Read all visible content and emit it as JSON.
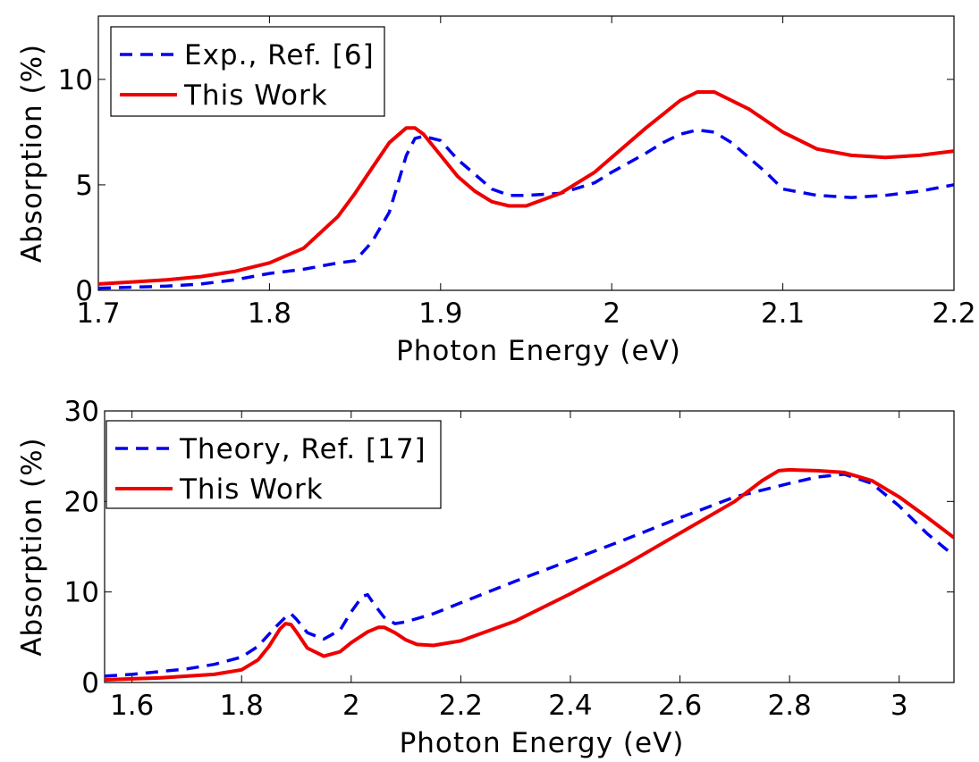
{
  "chart_data": [
    {
      "type": "line",
      "title": "",
      "xlabel": "Photon Energy (eV)",
      "ylabel": "Absorption (%)",
      "xlim": [
        1.7,
        2.2
      ],
      "ylim": [
        0,
        13
      ],
      "xticks": [
        "1.7",
        "1.8",
        "1.9",
        "2",
        "2.1",
        "2.2"
      ],
      "yticks": [
        "0",
        "5",
        "10"
      ],
      "grid": false,
      "legend_position": "top-left",
      "series": [
        {
          "name": "Exp., Ref. [6]",
          "style": "dashed",
          "color": "#0000ee",
          "x": [
            1.7,
            1.72,
            1.74,
            1.76,
            1.78,
            1.8,
            1.82,
            1.84,
            1.85,
            1.86,
            1.87,
            1.88,
            1.885,
            1.89,
            1.9,
            1.91,
            1.92,
            1.93,
            1.94,
            1.95,
            1.97,
            1.99,
            2.0,
            2.02,
            2.03,
            2.04,
            2.05,
            2.06,
            2.07,
            2.08,
            2.09,
            2.1,
            2.12,
            2.14,
            2.16,
            2.18,
            2.2
          ],
          "y": [
            0.1,
            0.15,
            0.2,
            0.3,
            0.5,
            0.8,
            1.0,
            1.3,
            1.4,
            2.3,
            3.7,
            6.4,
            7.2,
            7.3,
            7.1,
            6.2,
            5.5,
            4.8,
            4.5,
            4.5,
            4.6,
            5.1,
            5.6,
            6.5,
            7.0,
            7.4,
            7.6,
            7.5,
            7.0,
            6.3,
            5.6,
            4.8,
            4.5,
            4.4,
            4.5,
            4.7,
            5.0
          ]
        },
        {
          "name": "This Work",
          "style": "solid",
          "color": "#ee0000",
          "x": [
            1.7,
            1.72,
            1.74,
            1.76,
            1.78,
            1.8,
            1.82,
            1.84,
            1.85,
            1.86,
            1.87,
            1.88,
            1.885,
            1.89,
            1.9,
            1.91,
            1.92,
            1.93,
            1.94,
            1.95,
            1.97,
            1.99,
            2.0,
            2.02,
            2.04,
            2.05,
            2.06,
            2.08,
            2.1,
            2.12,
            2.14,
            2.16,
            2.18,
            2.2
          ],
          "y": [
            0.3,
            0.4,
            0.5,
            0.65,
            0.9,
            1.3,
            2.0,
            3.5,
            4.6,
            5.8,
            7.0,
            7.7,
            7.7,
            7.4,
            6.4,
            5.4,
            4.7,
            4.2,
            4.0,
            4.0,
            4.6,
            5.6,
            6.3,
            7.7,
            9.0,
            9.4,
            9.4,
            8.6,
            7.5,
            6.7,
            6.4,
            6.3,
            6.4,
            6.6
          ]
        }
      ]
    },
    {
      "type": "line",
      "title": "",
      "xlabel": "Photon Energy (eV)",
      "ylabel": "Absorption (%)",
      "xlim": [
        1.55,
        3.1
      ],
      "ylim": [
        0,
        30
      ],
      "xticks": [
        "1.6",
        "1.8",
        "2",
        "2.2",
        "2.4",
        "2.6",
        "2.8",
        "3"
      ],
      "yticks": [
        "0",
        "10",
        "20",
        "30"
      ],
      "grid": false,
      "legend_position": "top-left",
      "series": [
        {
          "name": "Theory, Ref. [17]",
          "style": "dashed",
          "color": "#0000ee",
          "x": [
            1.55,
            1.6,
            1.65,
            1.7,
            1.75,
            1.8,
            1.83,
            1.86,
            1.88,
            1.89,
            1.9,
            1.92,
            1.95,
            1.98,
            2.0,
            2.02,
            2.03,
            2.04,
            2.06,
            2.08,
            2.1,
            2.15,
            2.2,
            2.3,
            2.4,
            2.5,
            2.6,
            2.7,
            2.8,
            2.85,
            2.9,
            2.95,
            3.0,
            3.05,
            3.1
          ],
          "y": [
            0.7,
            0.9,
            1.2,
            1.5,
            2.0,
            2.8,
            4.0,
            6.0,
            7.2,
            7.6,
            7.0,
            5.5,
            4.8,
            5.8,
            7.8,
            9.5,
            9.7,
            8.8,
            7.2,
            6.5,
            6.7,
            7.6,
            8.8,
            11.2,
            13.5,
            15.8,
            18.2,
            20.5,
            22.0,
            22.7,
            23.0,
            22.0,
            19.5,
            16.5,
            14.0
          ]
        },
        {
          "name": "This Work",
          "style": "solid",
          "color": "#ee0000",
          "x": [
            1.55,
            1.6,
            1.65,
            1.7,
            1.75,
            1.8,
            1.83,
            1.85,
            1.87,
            1.88,
            1.89,
            1.9,
            1.92,
            1.95,
            1.98,
            2.0,
            2.03,
            2.05,
            2.06,
            2.08,
            2.1,
            2.12,
            2.15,
            2.2,
            2.3,
            2.4,
            2.5,
            2.6,
            2.7,
            2.75,
            2.78,
            2.8,
            2.85,
            2.9,
            2.95,
            3.0,
            3.05,
            3.1
          ],
          "y": [
            0.3,
            0.4,
            0.5,
            0.7,
            0.9,
            1.4,
            2.5,
            4.0,
            5.9,
            6.5,
            6.4,
            5.6,
            3.8,
            2.9,
            3.4,
            4.4,
            5.6,
            6.1,
            6.1,
            5.5,
            4.7,
            4.2,
            4.1,
            4.6,
            6.8,
            9.8,
            13.0,
            16.5,
            20.0,
            22.3,
            23.4,
            23.5,
            23.4,
            23.2,
            22.3,
            20.5,
            18.3,
            16.0
          ]
        }
      ]
    }
  ]
}
